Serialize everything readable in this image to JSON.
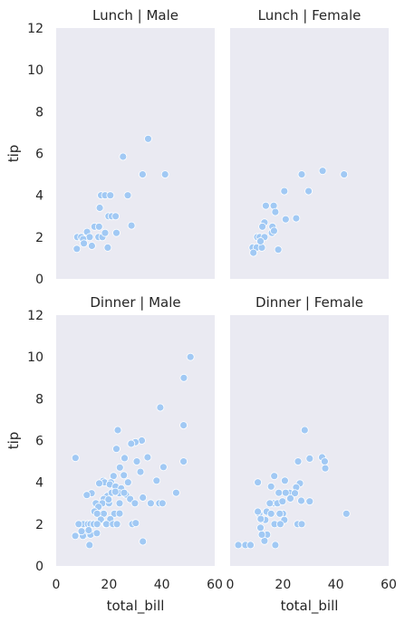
{
  "chart_data": {
    "type": "scatter",
    "x_variable": "total_bill",
    "y_variable": "tip",
    "xlabel": "total_bill",
    "ylabel": "tip",
    "xlim": [
      0,
      60
    ],
    "ylim": [
      0,
      12
    ],
    "xticks": [
      "0",
      "20",
      "40",
      "60"
    ],
    "yticks": [
      "0",
      "2",
      "4",
      "6",
      "8",
      "10",
      "12"
    ],
    "grid": false,
    "point_color": "#a1c9f4",
    "panel_background": "#eaeaf2",
    "panels": [
      {
        "title": "Lunch | Male",
        "points": [
          [
            34.8,
            6.7
          ],
          [
            25.3,
            5.85
          ],
          [
            32.7,
            5.0
          ],
          [
            41.2,
            5.0
          ],
          [
            27.1,
            4.0
          ],
          [
            17.0,
            4.0
          ],
          [
            18.5,
            4.0
          ],
          [
            20.5,
            4.0
          ],
          [
            16.5,
            3.4
          ],
          [
            19.8,
            3.0
          ],
          [
            21.0,
            3.0
          ],
          [
            22.5,
            3.0
          ],
          [
            14.5,
            2.5
          ],
          [
            28.5,
            2.55
          ],
          [
            11.7,
            2.25
          ],
          [
            12.7,
            2.0
          ],
          [
            16.0,
            2.0
          ],
          [
            17.5,
            2.0
          ],
          [
            16.2,
            2.5
          ],
          [
            18.5,
            2.2
          ],
          [
            22.8,
            2.2
          ],
          [
            8.0,
            2.0
          ],
          [
            9.5,
            2.0
          ],
          [
            10.2,
            1.9
          ],
          [
            10.5,
            1.7
          ],
          [
            13.5,
            1.58
          ],
          [
            19.5,
            1.5
          ],
          [
            7.8,
            1.44
          ]
        ]
      },
      {
        "title": "Lunch | Female",
        "points": [
          [
            43.1,
            5.0
          ],
          [
            35.0,
            5.17
          ],
          [
            27.1,
            5.0
          ],
          [
            29.7,
            4.2
          ],
          [
            20.5,
            4.2
          ],
          [
            13.5,
            3.5
          ],
          [
            16.5,
            3.5
          ],
          [
            17.1,
            3.2
          ],
          [
            25.0,
            2.9
          ],
          [
            21.0,
            2.85
          ],
          [
            13.0,
            2.7
          ],
          [
            16.0,
            2.5
          ],
          [
            12.2,
            2.5
          ],
          [
            15.8,
            2.2
          ],
          [
            16.6,
            2.3
          ],
          [
            10.3,
            2.0
          ],
          [
            11.2,
            2.0
          ],
          [
            13.0,
            2.0
          ],
          [
            8.5,
            1.5
          ],
          [
            10.0,
            1.5
          ],
          [
            12.0,
            1.5
          ],
          [
            18.2,
            1.4
          ],
          [
            8.8,
            1.25
          ],
          [
            11.5,
            1.8
          ]
        ]
      },
      {
        "title": "Dinner | Male",
        "points": [
          [
            50.8,
            10.0
          ],
          [
            48.3,
            9.0
          ],
          [
            39.4,
            7.58
          ],
          [
            48.2,
            6.73
          ],
          [
            32.4,
            6.0
          ],
          [
            23.3,
            6.5
          ],
          [
            30.0,
            5.92
          ],
          [
            28.4,
            5.85
          ],
          [
            7.3,
            5.17
          ],
          [
            22.8,
            5.6
          ],
          [
            34.6,
            5.2
          ],
          [
            25.9,
            5.16
          ],
          [
            30.5,
            5.0
          ],
          [
            48.2,
            5.0
          ],
          [
            40.6,
            4.73
          ],
          [
            24.1,
            4.71
          ],
          [
            31.9,
            4.5
          ],
          [
            25.6,
            4.34
          ],
          [
            21.7,
            4.3
          ],
          [
            38.0,
            4.08
          ],
          [
            17.8,
            4.07
          ],
          [
            18.3,
            4.0
          ],
          [
            20.7,
            4.0
          ],
          [
            27.2,
            4.0
          ],
          [
            16.3,
            3.95
          ],
          [
            20.3,
            3.9
          ],
          [
            22.5,
            3.8
          ],
          [
            24.6,
            3.71
          ],
          [
            32.8,
            3.27
          ],
          [
            13.4,
            3.48
          ],
          [
            23.9,
            3.48
          ],
          [
            26.4,
            3.42
          ],
          [
            28.0,
            3.2
          ],
          [
            45.4,
            3.5
          ],
          [
            19.4,
            3.35
          ],
          [
            21.0,
            3.5
          ],
          [
            22.4,
            3.55
          ],
          [
            25.7,
            3.5
          ],
          [
            18.0,
            3.2
          ],
          [
            15.0,
            3.0
          ],
          [
            17.5,
            3.0
          ],
          [
            20.0,
            3.0
          ],
          [
            35.8,
            3.0
          ],
          [
            39.0,
            3.0
          ],
          [
            40.2,
            3.0
          ],
          [
            29.8,
            3.0
          ],
          [
            24.0,
            3.0
          ],
          [
            16.0,
            2.83
          ],
          [
            19.8,
            3.18
          ],
          [
            14.5,
            2.61
          ],
          [
            11.6,
            3.39
          ],
          [
            18.0,
            2.5
          ],
          [
            22.0,
            2.5
          ],
          [
            24.0,
            2.51
          ],
          [
            15.5,
            2.5
          ],
          [
            16.9,
            2.22
          ],
          [
            20.5,
            2.24
          ],
          [
            18.7,
            2.0
          ],
          [
            10.3,
            2.0
          ],
          [
            12.0,
            2.0
          ],
          [
            13.0,
            2.0
          ],
          [
            14.2,
            2.0
          ],
          [
            15.5,
            2.0
          ],
          [
            19.0,
            2.0
          ],
          [
            21.5,
            2.0
          ],
          [
            23.0,
            2.0
          ],
          [
            28.8,
            2.0
          ],
          [
            8.5,
            2.0
          ],
          [
            11.0,
            1.5
          ],
          [
            13.0,
            1.5
          ],
          [
            12.3,
            1.71
          ],
          [
            15.4,
            1.57
          ],
          [
            10.1,
            1.44
          ],
          [
            7.25,
            1.44
          ],
          [
            9.6,
            1.66
          ],
          [
            32.8,
            1.17
          ],
          [
            12.6,
            1.0
          ],
          [
            30.1,
            2.05
          ]
        ]
      },
      {
        "title": "Dinner | Female",
        "points": [
          [
            28.2,
            6.5
          ],
          [
            34.8,
            5.2
          ],
          [
            35.8,
            5.0
          ],
          [
            30.1,
            5.14
          ],
          [
            25.7,
            5.0
          ],
          [
            36.0,
            4.67
          ],
          [
            20.7,
            4.08
          ],
          [
            16.7,
            4.3
          ],
          [
            10.5,
            4.0
          ],
          [
            26.4,
            3.95
          ],
          [
            15.5,
            3.8
          ],
          [
            22.5,
            3.5
          ],
          [
            18.4,
            3.5
          ],
          [
            25.0,
            3.76
          ],
          [
            21.0,
            3.5
          ],
          [
            16.5,
            3.0
          ],
          [
            17.9,
            3.0
          ],
          [
            19.8,
            3.09
          ],
          [
            30.1,
            3.09
          ],
          [
            24.5,
            3.48
          ],
          [
            22.8,
            3.23
          ],
          [
            15.0,
            3.0
          ],
          [
            13.8,
            2.6
          ],
          [
            15.5,
            2.5
          ],
          [
            20.0,
            2.5
          ],
          [
            26.9,
            3.12
          ],
          [
            18.8,
            2.5
          ],
          [
            11.0,
            2.5
          ],
          [
            10.5,
            2.6
          ],
          [
            20.5,
            2.2
          ],
          [
            13.3,
            2.2
          ],
          [
            16.8,
            2.0
          ],
          [
            11.6,
            2.25
          ],
          [
            19.0,
            2.0
          ],
          [
            25.5,
            2.0
          ],
          [
            27.1,
            2.0
          ],
          [
            14.0,
            1.5
          ],
          [
            11.5,
            1.83
          ],
          [
            44.0,
            2.5
          ],
          [
            3.1,
            1.0
          ],
          [
            5.8,
            1.0
          ],
          [
            7.7,
            1.0
          ],
          [
            13.0,
            1.2
          ],
          [
            17.1,
            1.0
          ],
          [
            12.0,
            1.5
          ]
        ]
      }
    ]
  }
}
